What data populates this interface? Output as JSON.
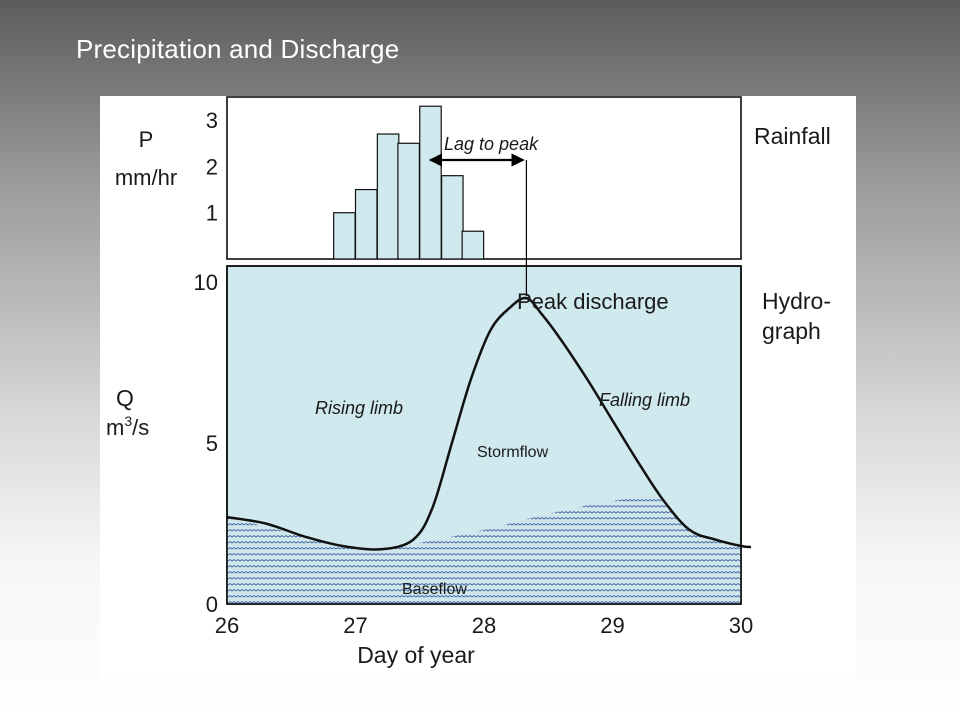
{
  "slide": {
    "title": "Precipitation and Discharge"
  },
  "chart_data": [
    {
      "type": "bar",
      "panel": "Rainfall",
      "panel_label": "Rainfall",
      "ylabel": "P",
      "yunit": "mm/hr",
      "ylim": [
        0,
        3.5
      ],
      "yticks": [
        "1",
        "2",
        "3"
      ],
      "bin_width_days": 0.167,
      "bins": [
        {
          "start": 26.83,
          "value": 1.0
        },
        {
          "start": 27.0,
          "value": 1.5
        },
        {
          "start": 27.17,
          "value": 2.7
        },
        {
          "start": 27.33,
          "value": 2.5
        },
        {
          "start": 27.5,
          "value": 3.3
        },
        {
          "start": 27.67,
          "value": 1.8
        },
        {
          "start": 27.83,
          "value": 0.6
        }
      ],
      "annotations": [
        "Lag to peak"
      ]
    },
    {
      "type": "area",
      "panel": "Hydrograph",
      "panel_label_lines": [
        "Hydro-",
        "graph"
      ],
      "ylabel": "Q",
      "yunit_base": "m",
      "yunit_sup": "3",
      "yunit_rest": "/s",
      "xlabel": "Day of year",
      "xlim": [
        26,
        30
      ],
      "ylim": [
        0,
        10
      ],
      "xticks": [
        "26",
        "27",
        "28",
        "29",
        "30"
      ],
      "yticks": [
        "0",
        "5",
        "10"
      ],
      "series": [
        {
          "x": [
            26.0,
            26.3,
            26.6,
            26.9,
            27.2,
            27.45,
            27.6,
            27.75,
            27.9,
            28.05,
            28.2,
            28.33,
            28.45,
            28.6,
            28.8,
            29.0,
            29.2,
            29.4,
            29.6,
            29.8,
            30.0
          ],
          "y": [
            2.7,
            2.5,
            2.1,
            1.8,
            1.7,
            2.0,
            3.0,
            5.0,
            7.0,
            8.5,
            9.2,
            9.5,
            9.0,
            8.2,
            7.0,
            5.7,
            4.4,
            3.2,
            2.3,
            2.0,
            1.8
          ]
        }
      ],
      "baseflow": {
        "x": [
          26.0,
          26.4,
          26.8,
          27.2,
          27.5,
          28.0,
          28.5,
          29.0,
          29.35,
          29.6,
          29.8,
          30.0
        ],
        "y": [
          2.7,
          2.3,
          1.9,
          1.7,
          1.9,
          2.3,
          2.8,
          3.2,
          3.3,
          2.3,
          2.0,
          1.8
        ]
      },
      "annotations": {
        "peak": "Peak discharge",
        "rising": "Rising limb",
        "falling": "Falling limb",
        "stormflow": "Stormflow",
        "baseflow": "Baseflow"
      }
    }
  ]
}
